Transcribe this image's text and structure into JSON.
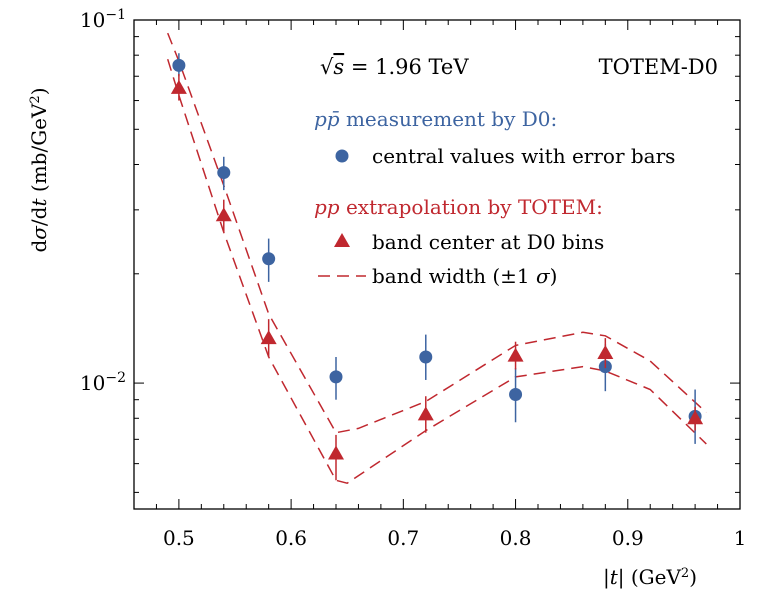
{
  "chart_data": {
    "type": "scatter",
    "title": "",
    "ylabel": "dσ/dt   (mb/GeV²)",
    "xlabel": "|t|   (GeV²)",
    "xlim": [
      0.46,
      1.0
    ],
    "ylim": [
      0.0045,
      0.1
    ],
    "yscale": "log",
    "grid": false,
    "legend_position": "top-right",
    "xticks": [
      0.5,
      0.6,
      0.7,
      0.8,
      0.9,
      1.0
    ],
    "xtick_labels": [
      "0.5",
      "0.6",
      "0.7",
      "0.8",
      "0.9",
      "1"
    ],
    "ytick_labels": [
      {
        "value": 0.1,
        "base": "10",
        "exp": "−1"
      },
      {
        "value": 0.01,
        "base": "10",
        "exp": "−2"
      }
    ],
    "annotations": {
      "energy": "√s = 1.96 TeV",
      "experiment": "TOTEM-D0"
    },
    "legend": {
      "d0_header": "pp̄ measurement by D0:",
      "d0_points": "central values with error bars",
      "totem_header": "pp extrapolation by TOTEM:",
      "totem_center": "band center at D0 bins",
      "totem_band": "band width (±1 σ)"
    },
    "series": [
      {
        "name": "central values with error bars",
        "kind": "points",
        "color": "#3d64a1",
        "x": [
          0.5,
          0.54,
          0.58,
          0.64,
          0.72,
          0.8,
          0.88,
          0.96
        ],
        "y": [
          0.075,
          0.038,
          0.022,
          0.0104,
          0.0118,
          0.0093,
          0.0111,
          0.0081
        ],
        "ylow": [
          0.07,
          0.034,
          0.019,
          0.009,
          0.0102,
          0.0078,
          0.0095,
          0.0068
        ],
        "yhigh": [
          0.081,
          0.042,
          0.025,
          0.0118,
          0.0136,
          0.011,
          0.0128,
          0.0096
        ]
      },
      {
        "name": "band center at D0 bins",
        "kind": "triangles",
        "color": "#c0282f",
        "x": [
          0.5,
          0.54,
          0.58,
          0.64,
          0.72,
          0.8,
          0.88,
          0.96
        ],
        "y": [
          0.065,
          0.029,
          0.0133,
          0.0064,
          0.0082,
          0.0119,
          0.0121,
          0.008
        ],
        "ylow": [
          0.06,
          0.026,
          0.0118,
          0.0054,
          0.0073,
          0.0109,
          0.011,
          0.0074
        ],
        "yhigh": [
          0.071,
          0.032,
          0.015,
          0.0072,
          0.0092,
          0.013,
          0.0133,
          0.0086
        ]
      },
      {
        "name": "band width (±1 σ)",
        "kind": "band-upper",
        "color": "#c0282f",
        "x": [
          0.49,
          0.5,
          0.54,
          0.58,
          0.64,
          0.66,
          0.72,
          0.8,
          0.86,
          0.88,
          0.92,
          0.97
        ],
        "y": [
          0.092,
          0.077,
          0.035,
          0.0155,
          0.0073,
          0.0075,
          0.0089,
          0.0127,
          0.0138,
          0.0135,
          0.0115,
          0.0083
        ]
      },
      {
        "name": "band width (±1 σ)",
        "kind": "band-lower",
        "color": "#c0282f",
        "x": [
          0.49,
          0.5,
          0.54,
          0.58,
          0.64,
          0.65,
          0.72,
          0.8,
          0.86,
          0.88,
          0.92,
          0.97
        ],
        "y": [
          0.078,
          0.062,
          0.026,
          0.0118,
          0.0054,
          0.0053,
          0.0074,
          0.0104,
          0.0111,
          0.0108,
          0.0096,
          0.0068
        ]
      }
    ]
  }
}
